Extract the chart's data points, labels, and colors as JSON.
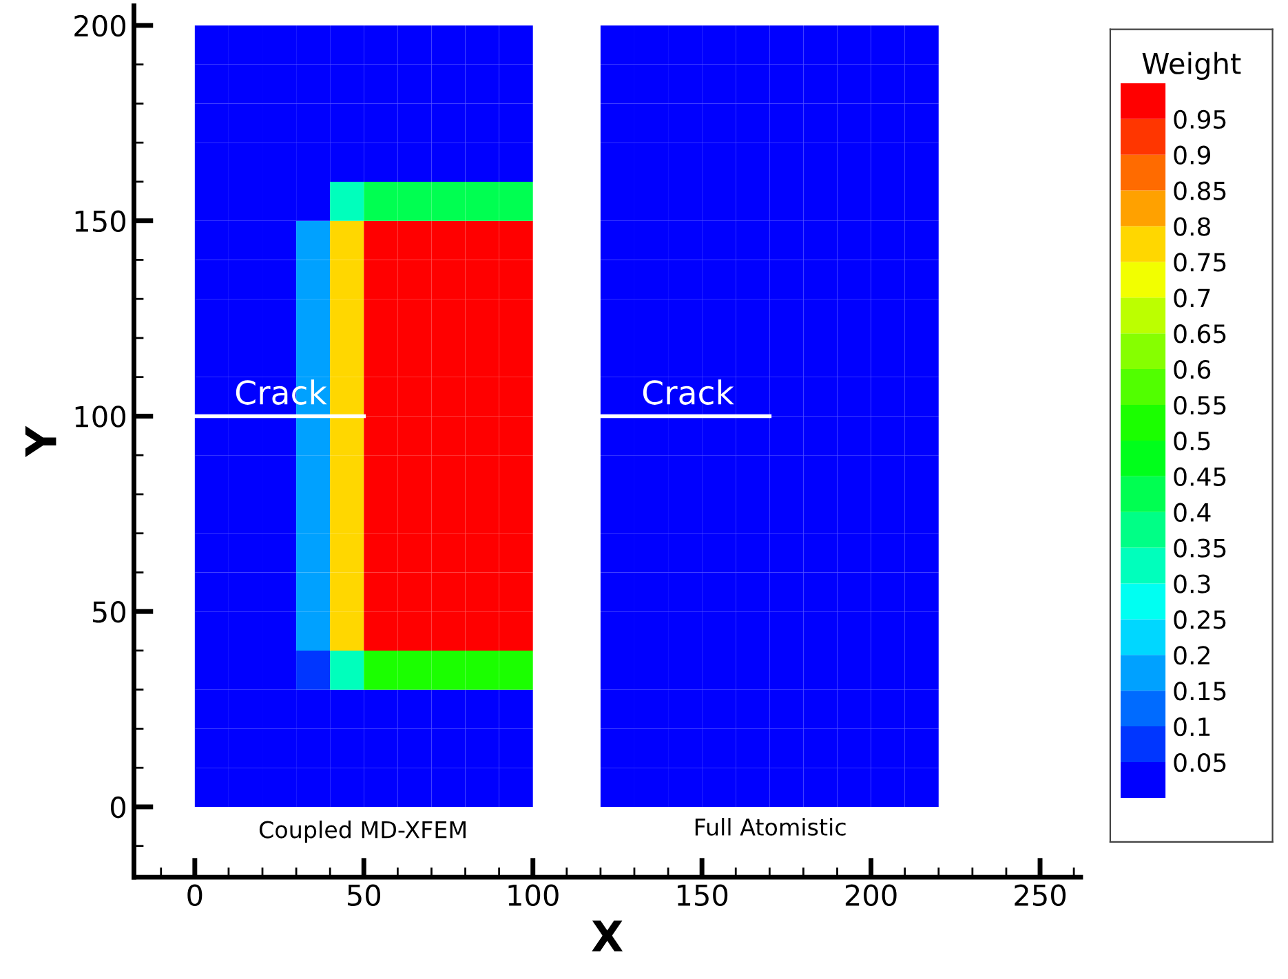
{
  "chart_data": {
    "type": "heatmap",
    "xlabel": "X",
    "ylabel": "Y",
    "clabel": "Weight",
    "x": [
      5,
      15,
      25,
      35,
      45,
      55,
      65,
      75,
      85,
      95,
      105,
      115,
      125,
      135,
      145,
      155,
      165,
      175,
      185,
      195,
      205,
      215
    ],
    "y": [
      195,
      185,
      175,
      165,
      155,
      145,
      135,
      125,
      115,
      105,
      95,
      85,
      75,
      65,
      55,
      45,
      35,
      25,
      15,
      5
    ],
    "cells": [
      [
        0,
        0,
        0,
        0,
        0,
        0,
        0,
        0,
        0,
        0,
        null,
        null,
        0,
        0,
        0,
        0,
        0,
        0,
        0,
        0,
        0,
        0
      ],
      [
        0,
        0,
        0,
        0,
        0,
        0,
        0,
        0,
        0,
        0,
        null,
        null,
        0,
        0,
        0,
        0,
        0,
        0,
        0,
        0,
        0,
        0
      ],
      [
        0,
        0,
        0,
        0,
        0,
        0,
        0,
        0,
        0,
        0,
        null,
        null,
        0,
        0,
        0,
        0,
        0,
        0,
        0,
        0,
        0,
        0
      ],
      [
        0,
        0,
        0,
        0,
        0,
        0,
        0,
        0,
        0,
        0,
        null,
        null,
        0,
        0,
        0,
        0,
        0,
        0,
        0,
        0,
        0,
        0
      ],
      [
        0,
        0,
        0,
        0,
        0.3,
        0.4,
        0.4,
        0.4,
        0.4,
        0.4,
        null,
        null,
        0,
        0,
        0,
        0,
        0,
        0,
        0,
        0,
        0,
        0
      ],
      [
        0,
        0,
        0,
        0.15,
        0.75,
        1,
        1,
        1,
        1,
        1,
        null,
        null,
        0,
        0,
        0,
        0,
        0,
        0,
        0,
        0,
        0,
        0
      ],
      [
        0,
        0,
        0,
        0.15,
        0.75,
        1,
        1,
        1,
        1,
        1,
        null,
        null,
        0,
        0,
        0,
        0,
        0,
        0,
        0,
        0,
        0,
        0
      ],
      [
        0,
        0,
        0,
        0.15,
        0.75,
        1,
        1,
        1,
        1,
        1,
        null,
        null,
        0,
        0,
        0,
        0,
        0,
        0,
        0,
        0,
        0,
        0
      ],
      [
        0,
        0,
        0,
        0.15,
        0.75,
        1,
        1,
        1,
        1,
        1,
        null,
        null,
        0,
        0,
        0,
        0,
        0,
        0,
        0,
        0,
        0,
        0
      ],
      [
        0,
        0,
        0,
        0.15,
        0.75,
        1,
        1,
        1,
        1,
        1,
        null,
        null,
        0,
        0,
        0,
        0,
        0,
        0,
        0,
        0,
        0,
        0
      ],
      [
        0,
        0,
        0,
        0.15,
        0.75,
        1,
        1,
        1,
        1,
        1,
        null,
        null,
        0,
        0,
        0,
        0,
        0,
        0,
        0,
        0,
        0,
        0
      ],
      [
        0,
        0,
        0,
        0.15,
        0.75,
        1,
        1,
        1,
        1,
        1,
        null,
        null,
        0,
        0,
        0,
        0,
        0,
        0,
        0,
        0,
        0,
        0
      ],
      [
        0,
        0,
        0,
        0.15,
        0.75,
        1,
        1,
        1,
        1,
        1,
        null,
        null,
        0,
        0,
        0,
        0,
        0,
        0,
        0,
        0,
        0,
        0
      ],
      [
        0,
        0,
        0,
        0.15,
        0.75,
        1,
        1,
        1,
        1,
        1,
        null,
        null,
        0,
        0,
        0,
        0,
        0,
        0,
        0,
        0,
        0,
        0
      ],
      [
        0,
        0,
        0,
        0.15,
        0.75,
        1,
        1,
        1,
        1,
        1,
        null,
        null,
        0,
        0,
        0,
        0,
        0,
        0,
        0,
        0,
        0,
        0
      ],
      [
        0,
        0,
        0,
        0.15,
        0.75,
        1,
        1,
        1,
        1,
        1,
        null,
        null,
        0,
        0,
        0,
        0,
        0,
        0,
        0,
        0,
        0,
        0
      ],
      [
        0,
        0,
        0,
        0.05,
        0.3,
        0.5,
        0.5,
        0.5,
        0.5,
        0.5,
        null,
        null,
        0,
        0,
        0,
        0,
        0,
        0,
        0,
        0,
        0,
        0
      ],
      [
        0,
        0,
        0,
        0,
        0,
        0,
        0,
        0,
        0,
        0,
        null,
        null,
        0,
        0,
        0,
        0,
        0,
        0,
        0,
        0,
        0,
        0
      ],
      [
        0,
        0,
        0,
        0,
        0,
        0,
        0,
        0,
        0,
        0,
        null,
        null,
        0,
        0,
        0,
        0,
        0,
        0,
        0,
        0,
        0,
        0
      ],
      [
        0,
        0,
        0,
        0,
        0,
        0,
        0,
        0,
        0,
        0,
        null,
        null,
        0,
        0,
        0,
        0,
        0,
        0,
        0,
        0,
        0,
        0
      ]
    ],
    "colors": [
      "#0000ff",
      "#00ffff",
      "#00ff00",
      "#ffff00",
      "#ff0000"
    ],
    "clim": [
      0,
      1
    ],
    "cticks": [
      0.05,
      0.1,
      0.15,
      0.2,
      0.25,
      0.3,
      0.35,
      0.4,
      0.45,
      0.5,
      0.55,
      0.6,
      0.65,
      0.7,
      0.75,
      0.8,
      0.85,
      0.9,
      0.95
    ],
    "series": [
      {
        "type": "line",
        "x": [
          0,
          50
        ],
        "values": [
          100,
          100
        ],
        "color": "#ffffff"
      },
      {
        "type": "line",
        "x": [
          120,
          170
        ],
        "values": [
          100,
          100
        ],
        "color": "#ffffff"
      }
    ],
    "annotations": [
      "Crack",
      "Crack",
      "Coupled MD-XFEM",
      "Full Atomistic"
    ],
    "xlim": [
      -18,
      262
    ],
    "ylim": [
      -18,
      205
    ],
    "xticks": [
      0,
      50,
      100,
      150,
      200,
      250
    ],
    "yticks": [
      0,
      50,
      100,
      150,
      200
    ],
    "grid": false
  }
}
